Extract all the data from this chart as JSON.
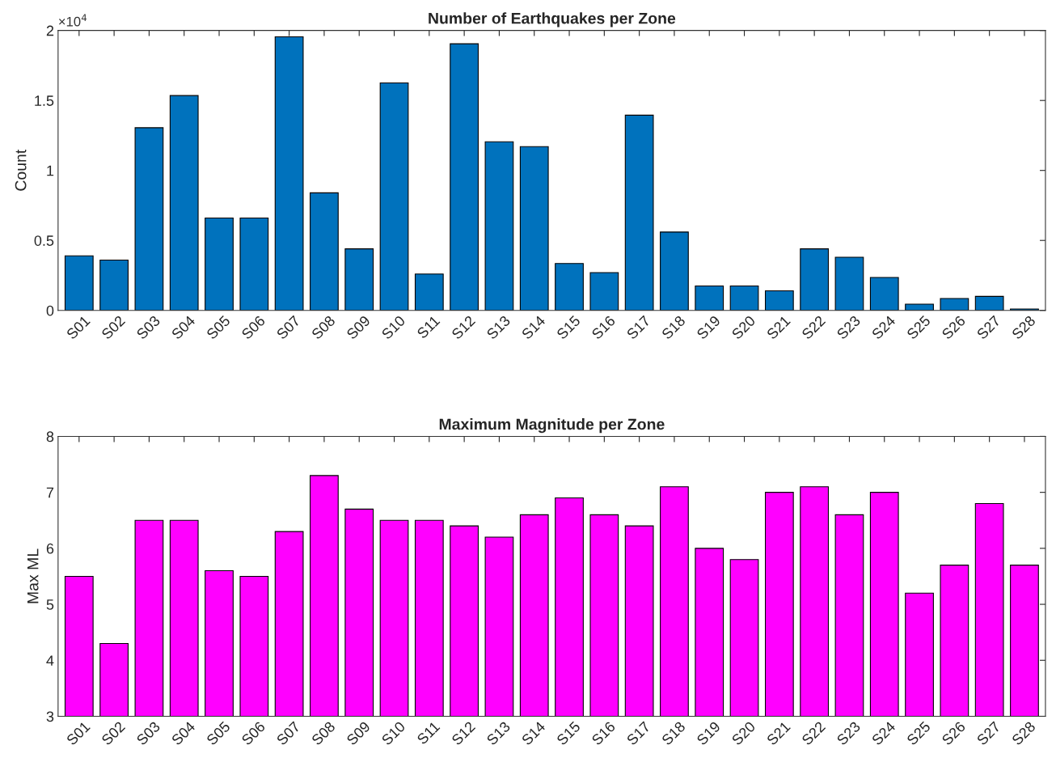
{
  "chart_data": [
    {
      "type": "bar",
      "title": "Number of Earthquakes per Zone",
      "ylabel": "Count",
      "annotations": [
        "×10$^{4}$"
      ],
      "categories": [
        "S01",
        "S02",
        "S03",
        "S04",
        "S05",
        "S06",
        "S07",
        "S08",
        "S09",
        "S10",
        "S11",
        "S12",
        "S13",
        "S14",
        "S15",
        "S16",
        "S17",
        "S18",
        "S19",
        "S20",
        "S21",
        "S22",
        "S23",
        "S24",
        "S25",
        "S26",
        "S27",
        "S28"
      ],
      "series": [
        {
          "color": "#0072bd",
          "values": [
            0.39,
            0.36,
            1.305,
            1.535,
            0.66,
            0.66,
            1.955,
            0.84,
            0.44,
            1.625,
            0.26,
            1.905,
            1.205,
            1.17,
            0.335,
            0.27,
            1.395,
            0.56,
            0.175,
            0.175,
            0.14,
            0.44,
            0.38,
            0.235,
            0.045,
            0.085,
            0.1,
            0.01
          ]
        }
      ],
      "ylim": [
        0,
        2
      ],
      "yticks": [
        0,
        0.5,
        1,
        1.5,
        2
      ]
    },
    {
      "type": "bar",
      "title": "Maximum Magnitude per Zone",
      "ylabel": "Max ML",
      "categories": [
        "S01",
        "S02",
        "S03",
        "S04",
        "S05",
        "S06",
        "S07",
        "S08",
        "S09",
        "S10",
        "S11",
        "S12",
        "S13",
        "S14",
        "S15",
        "S16",
        "S17",
        "S18",
        "S19",
        "S20",
        "S21",
        "S22",
        "S23",
        "S24",
        "S25",
        "S26",
        "S27",
        "S28"
      ],
      "series": [
        {
          "color": "#ff00ff",
          "values": [
            5.5,
            4.3,
            6.5,
            6.5,
            5.6,
            5.5,
            6.3,
            7.3,
            6.7,
            6.5,
            6.5,
            6.4,
            6.2,
            6.6,
            6.9,
            6.6,
            6.4,
            7.1,
            6.0,
            5.8,
            7.0,
            7.1,
            6.6,
            7.0,
            5.2,
            5.7,
            6.8,
            5.7
          ]
        }
      ],
      "ylim": [
        3,
        8
      ],
      "yticks": [
        3,
        4,
        5,
        6,
        7,
        8
      ]
    }
  ]
}
